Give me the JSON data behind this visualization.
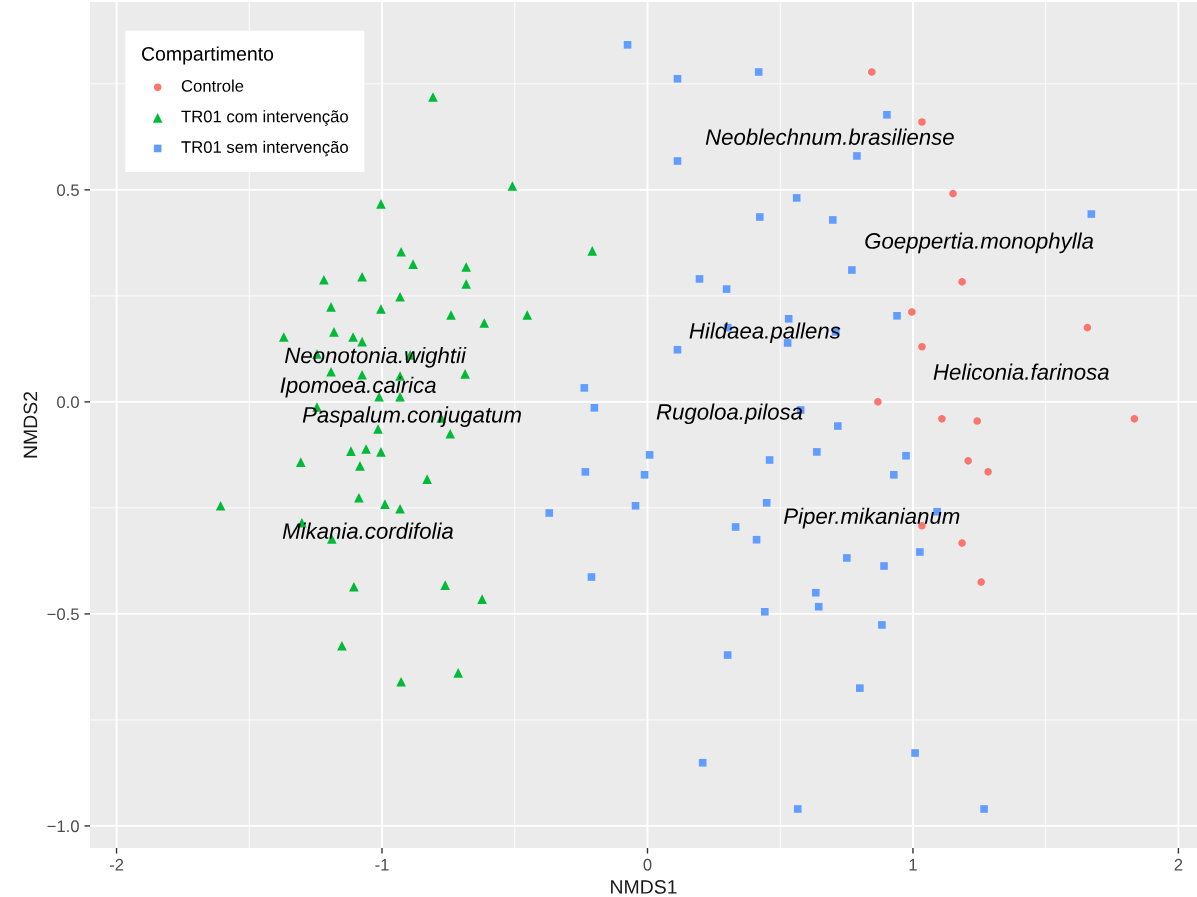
{
  "chart_data": {
    "type": "scatter",
    "xlabel": "NMDS1",
    "ylabel": "NMDS2",
    "legend_title": "Compartimento",
    "legend": "top left",
    "grid": true,
    "xlim": [
      -2.1,
      2.07
    ],
    "ylim": [
      -1.052,
      0.943
    ],
    "xticks": [
      -2,
      -1,
      0,
      1,
      2
    ],
    "yticks": [
      {
        "value": -1.0,
        "label": "−1.0"
      },
      {
        "value": -0.5,
        "label": "−0.5"
      },
      {
        "value": 0.0,
        "label": "0.0"
      },
      {
        "value": 0.5,
        "label": "0.5"
      }
    ],
    "series": [
      {
        "name": "Controle",
        "color": "#f8766d",
        "marker": "circle",
        "x": [
          0.845,
          1.034,
          1.151,
          1.185,
          0.996,
          1.034,
          1.657,
          0.868,
          1.109,
          1.242,
          1.834,
          1.208,
          1.283,
          1.034,
          1.185,
          1.257
        ],
        "values": [
          0.778,
          0.66,
          0.491,
          0.283,
          0.212,
          0.13,
          0.175,
          0.0,
          -0.04,
          -0.045,
          -0.04,
          -0.139,
          -0.165,
          -0.292,
          -0.333,
          -0.425
        ]
      },
      {
        "name": "TR01 com intervenção",
        "color": "#00ba38",
        "marker": "triangle",
        "x": [
          -0.808,
          -0.509,
          -1.004,
          -0.208,
          -0.928,
          -0.883,
          -1.219,
          -1.075,
          -0.683,
          -0.683,
          -0.932,
          -1.192,
          -1.004,
          -0.453,
          -0.74,
          -0.615,
          -1.181,
          -1.075,
          -1.109,
          -1.37,
          -1.245,
          -0.894,
          -1.192,
          -0.932,
          -0.687,
          -1.075,
          -1.011,
          -0.932,
          -1.245,
          -0.777,
          -1.015,
          -0.743,
          -1.117,
          -1.06,
          -1.004,
          -1.306,
          -1.083,
          -0.83,
          -1.087,
          -0.989,
          -0.932,
          -1.608,
          -1.302,
          -1.189,
          -1.106,
          -0.762,
          -0.623,
          -1.151,
          -0.713,
          -0.928
        ],
        "values": [
          0.719,
          0.509,
          0.467,
          0.356,
          0.354,
          0.325,
          0.288,
          0.295,
          0.318,
          0.278,
          0.248,
          0.224,
          0.219,
          0.205,
          0.205,
          0.186,
          0.165,
          0.142,
          0.153,
          0.153,
          0.113,
          0.111,
          0.071,
          0.061,
          0.066,
          0.064,
          0.012,
          0.012,
          -0.012,
          -0.038,
          -0.064,
          -0.075,
          -0.116,
          -0.111,
          -0.118,
          -0.142,
          -0.151,
          -0.182,
          -0.226,
          -0.241,
          -0.252,
          -0.245,
          -0.285,
          -0.323,
          -0.436,
          -0.432,
          -0.465,
          -0.575,
          -0.639,
          -0.66
        ]
      },
      {
        "name": "TR01 sem intervenção",
        "color": "#619cff",
        "marker": "square",
        "x": [
          -0.075,
          0.113,
          0.419,
          0.902,
          0.113,
          0.789,
          0.562,
          0.423,
          0.698,
          1.672,
          0.77,
          0.196,
          0.298,
          0.532,
          0.94,
          0.302,
          0.709,
          0.528,
          0.113,
          -0.238,
          -0.2,
          0.577,
          0.717,
          0.008,
          -0.234,
          -0.011,
          0.46,
          0.638,
          0.974,
          0.928,
          -0.045,
          0.449,
          -0.37,
          1.091,
          0.332,
          0.411,
          1.026,
          0.751,
          0.891,
          -0.211,
          0.634,
          0.645,
          0.442,
          0.883,
          0.302,
          0.8,
          0.208,
          1.008,
          0.566,
          1.268
        ],
        "values": [
          0.842,
          0.762,
          0.778,
          0.677,
          0.568,
          0.58,
          0.481,
          0.436,
          0.429,
          0.443,
          0.311,
          0.29,
          0.266,
          0.196,
          0.203,
          0.175,
          0.165,
          0.139,
          0.123,
          0.033,
          -0.014,
          -0.019,
          -0.057,
          -0.125,
          -0.165,
          -0.172,
          -0.137,
          -0.118,
          -0.127,
          -0.172,
          -0.245,
          -0.238,
          -0.262,
          -0.259,
          -0.295,
          -0.325,
          -0.354,
          -0.368,
          -0.387,
          -0.413,
          -0.45,
          -0.483,
          -0.495,
          -0.526,
          -0.597,
          -0.675,
          -0.851,
          -0.828,
          -0.96,
          -0.96
        ]
      }
    ],
    "annotations": [
      "Neoblechnum.brasiliense",
      "Goeppertia.monophylla",
      "Hildaea.pallens",
      "Heliconia.farinosa",
      "Rugoloa.pilosa",
      "Piper.mikanianum",
      "Neonotonia.wightii",
      "Ipomoea.cairica",
      "Paspalum.conjugatum",
      "Mikania.cordifolia"
    ]
  }
}
